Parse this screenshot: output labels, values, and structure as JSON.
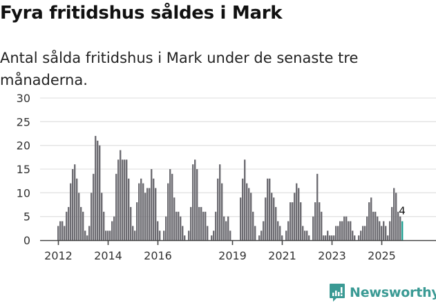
{
  "header": {
    "title": "Fyra fritidshus såldes i Mark",
    "subtitle": "Antal sålda fritidshus i Mark under de senaste tre månaderna."
  },
  "brand": {
    "name": "Newsworthy",
    "icon": "newsworthy-logo-icon",
    "color": "#3a9a94"
  },
  "colors": {
    "bar": "#6d6c72",
    "highlight_bar": "#23a395",
    "gridline": "#e3e3e3",
    "axis": "#444444"
  },
  "chart_data": {
    "type": "bar",
    "title": "Fyra fritidshus såldes i Mark",
    "subtitle": "Antal sålda fritidshus i Mark under de senaste tre månaderna.",
    "xlabel": "",
    "ylabel": "",
    "ylim": [
      0,
      30
    ],
    "yticks": [
      0,
      5,
      10,
      15,
      20,
      25,
      30
    ],
    "grid": true,
    "legend": "none",
    "frequency": "monthly",
    "start": "2012-01",
    "end": "2025-11",
    "xtick_labels": [
      "2012",
      "2014",
      "2016",
      "2019",
      "2021",
      "2023",
      "2025"
    ],
    "xtick_years": [
      2012,
      2014,
      2016,
      2019,
      2021,
      2023,
      2025
    ],
    "highlight": {
      "period": "2025-11",
      "value": 4,
      "label": "4"
    },
    "series": [
      {
        "name": "Sålda fritidshus",
        "year": 2012,
        "values": [
          3,
          4,
          4,
          3,
          6,
          7,
          12,
          15,
          16,
          13,
          10,
          7
        ]
      },
      {
        "name": "Sålda fritidshus",
        "year": 2013,
        "values": [
          6,
          2,
          1,
          3,
          10,
          14,
          22,
          21,
          20,
          10,
          6,
          2
        ]
      },
      {
        "name": "Sålda fritidshus",
        "year": 2014,
        "values": [
          2,
          2,
          4,
          5,
          14,
          17,
          19,
          17,
          17,
          17,
          13,
          7
        ]
      },
      {
        "name": "Sålda fritidshus",
        "year": 2015,
        "values": [
          3,
          2,
          8,
          12,
          13,
          12,
          10,
          11,
          11,
          15,
          13,
          11
        ]
      },
      {
        "name": "Sålda fritidshus",
        "year": 2016,
        "values": [
          4,
          2,
          0,
          2,
          5,
          12,
          15,
          14,
          9,
          6,
          6,
          5
        ]
      },
      {
        "name": "Sålda fritidshus",
        "year": 2017,
        "values": [
          3,
          1,
          0,
          2,
          7,
          16,
          17,
          15,
          7,
          7,
          6,
          6
        ]
      },
      {
        "name": "Sålda fritidshus",
        "year": 2018,
        "values": [
          3,
          0,
          1,
          2,
          6,
          13,
          16,
          12,
          5,
          4,
          5,
          2
        ]
      },
      {
        "name": "Sålda fritidshus",
        "year": 2019,
        "values": [
          0,
          0,
          0,
          0,
          9,
          13,
          17,
          12,
          11,
          10,
          6,
          3
        ]
      },
      {
        "name": "Sålda fritidshus",
        "year": 2020,
        "values": [
          0,
          1,
          2,
          4,
          9,
          13,
          13,
          10,
          9,
          7,
          4,
          3
        ]
      },
      {
        "name": "Sålda fritidshus",
        "year": 2021,
        "values": [
          1,
          0,
          2,
          4,
          8,
          8,
          10,
          12,
          11,
          8,
          3,
          2
        ]
      },
      {
        "name": "Sålda fritidshus",
        "year": 2022,
        "values": [
          2,
          1,
          0,
          5,
          8,
          14,
          8,
          6,
          1,
          1,
          2,
          1
        ]
      },
      {
        "name": "Sålda fritidshus",
        "year": 2023,
        "values": [
          1,
          1,
          3,
          3,
          4,
          4,
          5,
          5,
          4,
          4,
          2,
          1
        ]
      },
      {
        "name": "Sålda fritidshus",
        "year": 2024,
        "values": [
          0,
          1,
          2,
          3,
          3,
          5,
          8,
          9,
          6,
          6,
          5,
          4
        ]
      },
      {
        "name": "Sålda fritidshus",
        "year": 2025,
        "values": [
          3,
          4,
          3,
          1,
          4,
          7,
          11,
          10,
          6,
          5,
          4
        ]
      }
    ]
  }
}
